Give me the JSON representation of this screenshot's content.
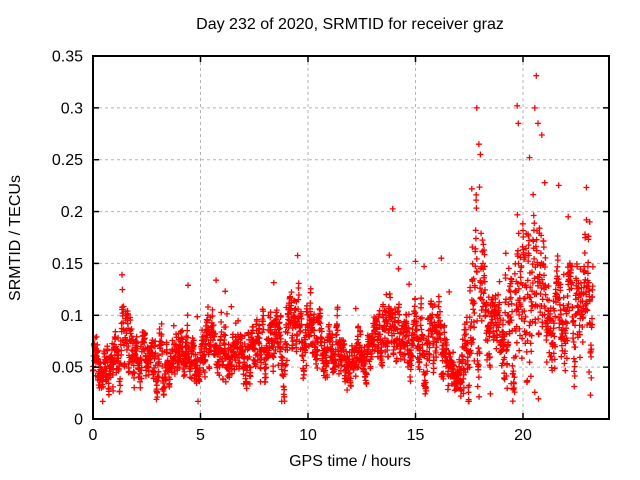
{
  "window": {
    "background": "#ffffff",
    "text_color": "#000000"
  },
  "chart_data": {
    "type": "scatter",
    "title": "Day 232 of 2020, SRMTID for receiver graz",
    "xlabel": "GPS time / hours",
    "ylabel": "SRMTID / TECUs",
    "xlim": [
      0,
      24
    ],
    "ylim": [
      0,
      0.35
    ],
    "xticks": [
      0,
      5,
      10,
      15,
      20
    ],
    "yticks": [
      0,
      0.05,
      0.1,
      0.15,
      0.2,
      0.25,
      0.3,
      0.35
    ],
    "grid": true,
    "grid_style": "dashed",
    "grid_color": "#b4b4b4",
    "legend": false,
    "marker": "plus",
    "marker_color": "#ff0000",
    "marker_size": 7,
    "frame_color": "#000000",
    "sample_interval_hours": 0.0083333,
    "t_start": 0,
    "t_end": 23.25,
    "seed": 42,
    "envelope": [
      [
        0.0,
        0.055,
        0.02
      ],
      [
        0.4,
        0.048,
        0.018
      ],
      [
        0.8,
        0.042,
        0.015
      ],
      [
        1.3,
        0.082,
        0.028
      ],
      [
        1.7,
        0.07,
        0.022
      ],
      [
        2.2,
        0.058,
        0.016
      ],
      [
        3.0,
        0.06,
        0.018
      ],
      [
        3.6,
        0.055,
        0.016
      ],
      [
        4.2,
        0.065,
        0.02
      ],
      [
        5.0,
        0.058,
        0.016
      ],
      [
        5.6,
        0.075,
        0.024
      ],
      [
        6.3,
        0.062,
        0.018
      ],
      [
        7.2,
        0.07,
        0.022
      ],
      [
        8.0,
        0.068,
        0.02
      ],
      [
        8.8,
        0.075,
        0.024
      ],
      [
        9.5,
        0.082,
        0.022
      ],
      [
        10.3,
        0.082,
        0.02
      ],
      [
        11.0,
        0.07,
        0.018
      ],
      [
        12.0,
        0.063,
        0.018
      ],
      [
        13.0,
        0.068,
        0.02
      ],
      [
        13.8,
        0.09,
        0.03
      ],
      [
        14.4,
        0.068,
        0.02
      ],
      [
        15.0,
        0.072,
        0.022
      ],
      [
        15.5,
        0.078,
        0.026
      ],
      [
        16.2,
        0.072,
        0.028
      ],
      [
        16.8,
        0.04,
        0.014
      ],
      [
        17.1,
        0.035,
        0.012
      ],
      [
        17.5,
        0.085,
        0.045
      ],
      [
        17.9,
        0.13,
        0.058
      ],
      [
        18.4,
        0.085,
        0.03
      ],
      [
        19.0,
        0.088,
        0.03
      ],
      [
        19.35,
        0.105,
        0.045
      ],
      [
        19.75,
        0.13,
        0.058
      ],
      [
        20.1,
        0.115,
        0.05
      ],
      [
        20.55,
        0.15,
        0.065
      ],
      [
        20.9,
        0.115,
        0.045
      ],
      [
        21.3,
        0.09,
        0.032
      ],
      [
        21.6,
        0.088,
        0.03
      ],
      [
        22.1,
        0.105,
        0.038
      ],
      [
        22.5,
        0.095,
        0.032
      ],
      [
        22.9,
        0.115,
        0.038
      ],
      [
        23.25,
        0.1,
        0.035
      ]
    ],
    "peak_points": [
      [
        1.35,
        0.139
      ],
      [
        13.78,
        0.158
      ],
      [
        14.7,
        0.13
      ],
      [
        15.4,
        0.147
      ],
      [
        16.2,
        0.155
      ],
      [
        17.62,
        0.222
      ],
      [
        17.85,
        0.3
      ],
      [
        17.95,
        0.265
      ],
      [
        18.02,
        0.255
      ],
      [
        19.73,
        0.302
      ],
      [
        19.78,
        0.285
      ],
      [
        20.3,
        0.252
      ],
      [
        20.55,
        0.3
      ],
      [
        20.62,
        0.331
      ],
      [
        20.7,
        0.285
      ],
      [
        22.1,
        0.195
      ],
      [
        22.95,
        0.192
      ],
      [
        23.1,
        0.19
      ]
    ],
    "value_min": 0.017,
    "value_max": 0.331
  }
}
